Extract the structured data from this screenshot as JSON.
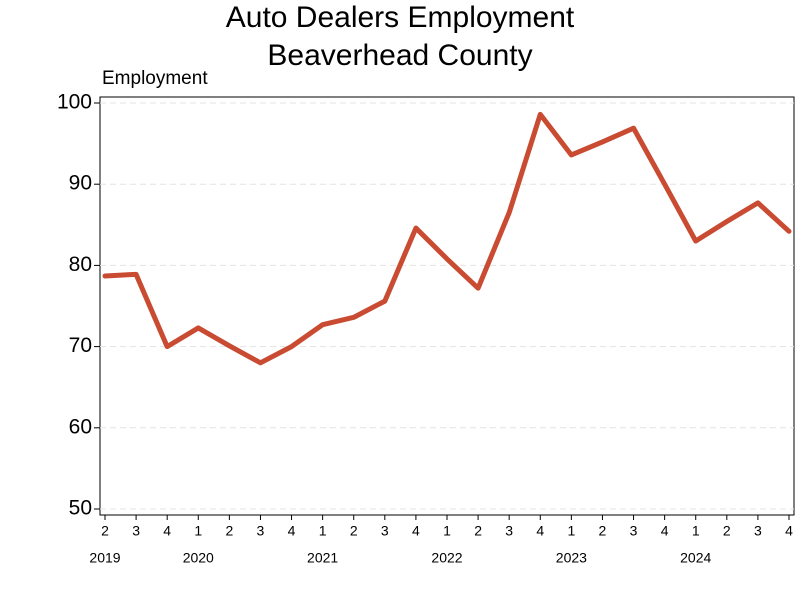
{
  "chart_data": {
    "type": "line",
    "title": "Auto Dealers Employment",
    "subtitle": "Beaverhead County",
    "y_label": "Employment",
    "categories": [
      "2",
      "3",
      "4",
      "1",
      "2",
      "3",
      "4",
      "1",
      "2",
      "3",
      "4",
      "1",
      "2",
      "3",
      "4",
      "1",
      "2",
      "3",
      "4",
      "1",
      "2",
      "3",
      "4"
    ],
    "years": [
      "2019",
      "2020",
      "2021",
      "2022",
      "2023",
      "2024"
    ],
    "series": [
      {
        "name": "Employment",
        "color": "#c84b32",
        "values": [
          78.7,
          78.9,
          70.0,
          72.3,
          70.1,
          68.0,
          70.0,
          72.7,
          73.6,
          75.6,
          84.6,
          80.8,
          77.2,
          86.5,
          98.6,
          93.6,
          95.2,
          96.9,
          90.0,
          83.0,
          85.4,
          87.7,
          84.2
        ]
      }
    ],
    "ylim": [
      50,
      100
    ],
    "yticks": [
      50,
      60,
      70,
      80,
      90,
      100
    ],
    "grid": true
  }
}
